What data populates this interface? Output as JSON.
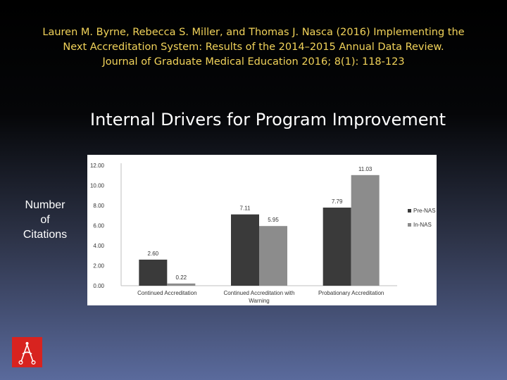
{
  "citation": {
    "line1": "Lauren M. Byrne, Rebecca S. Miller, and Thomas J. Nasca (2016) Implementing the",
    "line2": "Next Accreditation System: Results of the 2014–2015 Annual Data Review.",
    "line3": "Journal of Graduate Medical Education 2016; 8(1): 118-123"
  },
  "slide_title": "Internal Drivers for Program Improvement",
  "y_axis_label_lines": [
    "Number",
    "of",
    "Citations"
  ],
  "colors": {
    "citation_text": "#f2d35a",
    "pre_nas": "#3a3a3a",
    "in_nas": "#8c8c8c",
    "logo": "#d8231f"
  },
  "chart_data": {
    "type": "bar",
    "categories": [
      "Continued Accreditation",
      "Continued Accreditation with Warning",
      "Probationary Accreditation"
    ],
    "category_label_lines": [
      [
        "Continued Accreditation"
      ],
      [
        "Continued Accreditation with",
        "Warning"
      ],
      [
        "Probationary Accreditation"
      ]
    ],
    "series": [
      {
        "name": "Pre-NAS",
        "values": [
          2.6,
          7.11,
          7.79
        ],
        "labels": [
          "2.60",
          "7.11",
          "7.79"
        ],
        "color": "#3a3a3a"
      },
      {
        "name": "In-NAS",
        "values": [
          0.22,
          5.95,
          11.03
        ],
        "labels": [
          "0.22",
          "5.95",
          "11.03"
        ],
        "color": "#8c8c8c"
      }
    ],
    "yticks": [
      "0.00",
      "2.00",
      "4.00",
      "6.00",
      "8.00",
      "10.00",
      "12.00"
    ],
    "ylim": [
      0,
      12
    ],
    "grid": false,
    "legend_position": "right"
  }
}
